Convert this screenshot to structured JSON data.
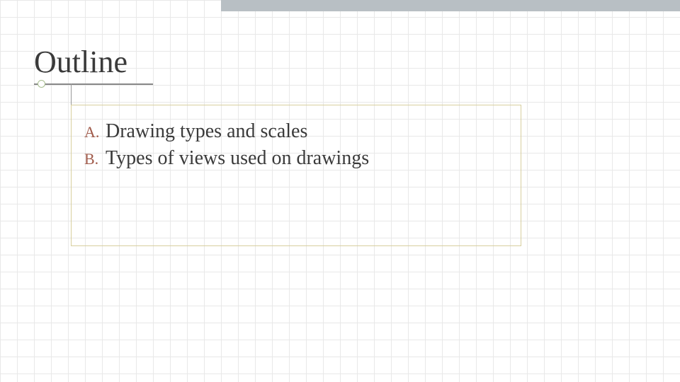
{
  "slide": {
    "title": "Outline",
    "items": [
      {
        "marker": "A.",
        "text": "Drawing types and scales"
      },
      {
        "marker": "B.",
        "text": "Types of views used on drawings"
      }
    ]
  },
  "style": {
    "background_color": "#ffffff",
    "grid_color": "#e8e8e8",
    "grid_spacing": 24,
    "top_bar_color": "#b8bfc4",
    "title_fontsize": 44,
    "title_color": "#3a3a3a",
    "underline_color": "#888888",
    "vertical_rule_color": "#999999",
    "bullet_border_color": "#a8bf8f",
    "content_border_color": "#d8cf9f",
    "marker_color": "#a05a4a",
    "marker_fontsize": 22,
    "item_fontsize": 28,
    "item_color": "#3a3a3a",
    "font_family": "Georgia"
  }
}
